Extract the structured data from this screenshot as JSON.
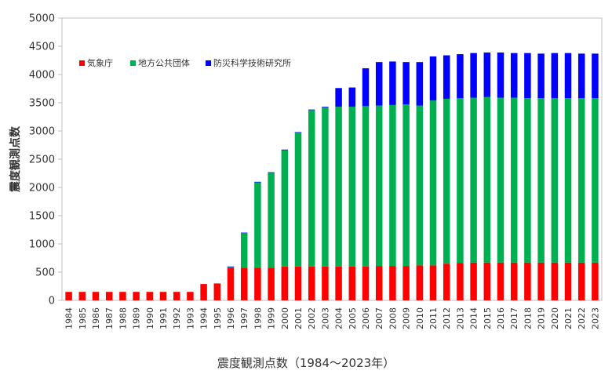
{
  "chart_data": {
    "type": "bar",
    "stacked": true,
    "title": "",
    "xlabel": "震度観測点数（1984～2023年）",
    "ylabel": "震度観測点数",
    "ylim": [
      0,
      5000
    ],
    "yticks": [
      "0",
      "500",
      "1000",
      "1500",
      "2000",
      "2500",
      "3000",
      "3500",
      "4000",
      "4500",
      "5000"
    ],
    "grid": false,
    "legend_position": "top-left",
    "categories": [
      "1984",
      "1985",
      "1986",
      "1987",
      "1988",
      "1989",
      "1990",
      "1991",
      "1992",
      "1993",
      "1994",
      "1995",
      "1996",
      "1997",
      "1998",
      "1999",
      "2000",
      "2001",
      "2002",
      "2003",
      "2004",
      "2005",
      "2006",
      "2007",
      "2008",
      "2009",
      "2010",
      "2011",
      "2012",
      "2013",
      "2014",
      "2015",
      "2016",
      "2017",
      "2018",
      "2019",
      "2020",
      "2021",
      "2022",
      "2023"
    ],
    "series": [
      {
        "name": "気象庁",
        "color": "#ff0000",
        "values": [
          150,
          150,
          150,
          150,
          150,
          150,
          150,
          150,
          150,
          150,
          290,
          300,
          580,
          580,
          580,
          580,
          600,
          600,
          600,
          600,
          600,
          600,
          600,
          610,
          610,
          610,
          620,
          620,
          650,
          660,
          670,
          670,
          670,
          670,
          670,
          670,
          670,
          670,
          670,
          670
        ]
      },
      {
        "name": "地方公共団体",
        "color": "#00b050",
        "values": [
          0,
          0,
          0,
          0,
          0,
          0,
          0,
          0,
          0,
          0,
          0,
          0,
          10,
          610,
          1510,
          1680,
          2060,
          2370,
          2770,
          2820,
          2830,
          2830,
          2840,
          2840,
          2850,
          2860,
          2830,
          2920,
          2920,
          2920,
          2920,
          2930,
          2920,
          2920,
          2910,
          2910,
          2910,
          2910,
          2910,
          2910
        ]
      },
      {
        "name": "防災科学技術研究所",
        "color": "#0000ff",
        "values": [
          0,
          0,
          0,
          0,
          0,
          0,
          0,
          0,
          0,
          0,
          0,
          0,
          10,
          10,
          10,
          10,
          10,
          10,
          10,
          10,
          330,
          340,
          670,
          770,
          770,
          750,
          770,
          780,
          770,
          780,
          790,
          790,
          800,
          790,
          800,
          790,
          800,
          800,
          790,
          790
        ]
      }
    ]
  }
}
